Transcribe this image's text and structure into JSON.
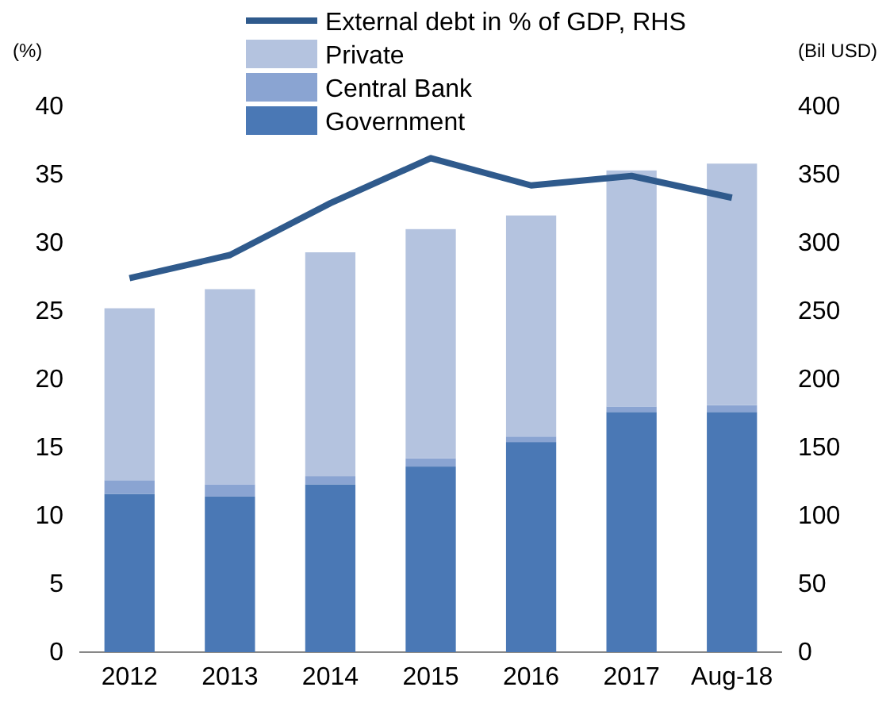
{
  "chart_data": {
    "type": "bar",
    "stacked": true,
    "ylabel": "(%)",
    "y2label": "(Bil USD)",
    "categories": [
      "2012",
      "2013",
      "2014",
      "2015",
      "2016",
      "2017",
      "Aug-18"
    ],
    "series": [
      {
        "name": "Government",
        "color": "#4a78b5",
        "values": [
          11.6,
          11.4,
          12.3,
          13.6,
          15.4,
          17.6,
          17.6
        ]
      },
      {
        "name": "Central Bank",
        "color": "#8aa4d2",
        "values": [
          1.0,
          0.9,
          0.6,
          0.6,
          0.4,
          0.4,
          0.5
        ]
      },
      {
        "name": "Private",
        "color": "#b4c3df",
        "values": [
          12.6,
          14.3,
          16.4,
          16.8,
          16.2,
          17.3,
          17.7
        ]
      },
      {
        "name": "External debt in % of GDP, RHS",
        "type": "line",
        "axis": "y2",
        "color": "#2f5a8c",
        "values": [
          274,
          291,
          329,
          362,
          342,
          349,
          333
        ]
      }
    ],
    "ylim": [
      0,
      40
    ],
    "yticks": [
      0,
      5,
      10,
      15,
      20,
      25,
      30,
      35,
      40
    ],
    "y2lim": [
      0,
      400
    ],
    "y2ticks": [
      0,
      50,
      100,
      150,
      200,
      250,
      300,
      350,
      400
    ],
    "legend": "top left",
    "grid": false,
    "marker": "none",
    "line_style": "solid"
  }
}
